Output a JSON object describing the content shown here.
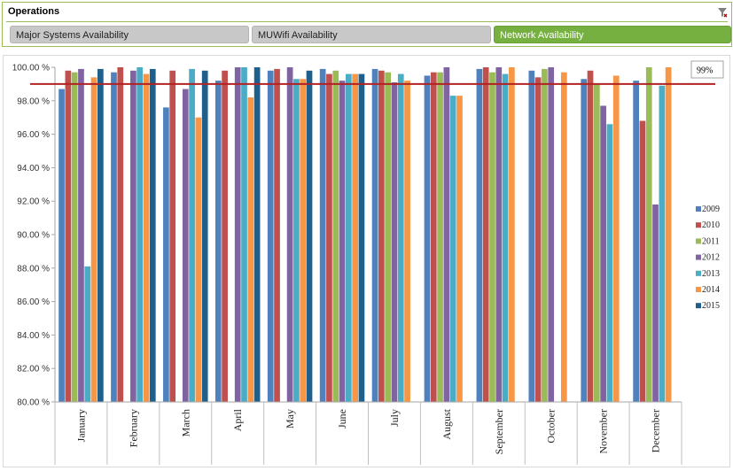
{
  "slicer": {
    "title": "Operations",
    "buttons": [
      {
        "label": "Major Systems Availability",
        "selected": false
      },
      {
        "label": "MUWifi Availability",
        "selected": false
      },
      {
        "label": "Network Availability",
        "selected": true
      }
    ]
  },
  "target_label": "99%",
  "colors": {
    "2009": "#4f81bd",
    "2010": "#c0504d",
    "2011": "#9bbb59",
    "2012": "#8064a2",
    "2013": "#4bacc6",
    "2014": "#f79646",
    "2015": "#1f5f8b",
    "target_line": "#b22222",
    "selected_button": "#76b041"
  },
  "chart_data": {
    "type": "bar",
    "categories": [
      "January",
      "February",
      "March",
      "April",
      "May",
      "June",
      "July",
      "August",
      "September",
      "October",
      "November",
      "December"
    ],
    "series": [
      {
        "name": "2009",
        "values": [
          98.7,
          99.7,
          97.6,
          99.2,
          99.8,
          99.9,
          99.9,
          99.5,
          99.9,
          99.8,
          99.3,
          99.2
        ]
      },
      {
        "name": "2010",
        "values": [
          99.8,
          100.0,
          99.8,
          99.8,
          99.9,
          99.6,
          99.8,
          99.7,
          100.0,
          99.4,
          99.8,
          96.8
        ]
      },
      {
        "name": "2011",
        "values": [
          99.7,
          null,
          null,
          null,
          null,
          99.8,
          99.7,
          99.7,
          99.7,
          99.9,
          99.0,
          100.0
        ]
      },
      {
        "name": "2012",
        "values": [
          99.9,
          99.8,
          98.7,
          100.0,
          100.0,
          99.2,
          99.1,
          100.0,
          100.0,
          100.0,
          97.7,
          91.8
        ]
      },
      {
        "name": "2013",
        "values": [
          88.1,
          100.0,
          99.9,
          100.0,
          99.3,
          99.6,
          99.6,
          98.3,
          99.6,
          null,
          96.6,
          98.9
        ]
      },
      {
        "name": "2014",
        "values": [
          99.4,
          99.6,
          97.0,
          98.2,
          99.3,
          99.6,
          99.2,
          98.3,
          100.0,
          99.7,
          99.5,
          100.0
        ]
      },
      {
        "name": "2015",
        "values": [
          99.9,
          99.9,
          99.8,
          100.0,
          99.8,
          99.6,
          null,
          null,
          null,
          null,
          null,
          null
        ]
      }
    ],
    "ylim": [
      80,
      100
    ],
    "yticks": [
      "80.00 %",
      "82.00 %",
      "84.00 %",
      "86.00 %",
      "88.00 %",
      "90.00 %",
      "92.00 %",
      "94.00 %",
      "96.00 %",
      "98.00 %",
      "100.00 %"
    ],
    "target": 99,
    "legend_position": "right",
    "grid": false
  }
}
